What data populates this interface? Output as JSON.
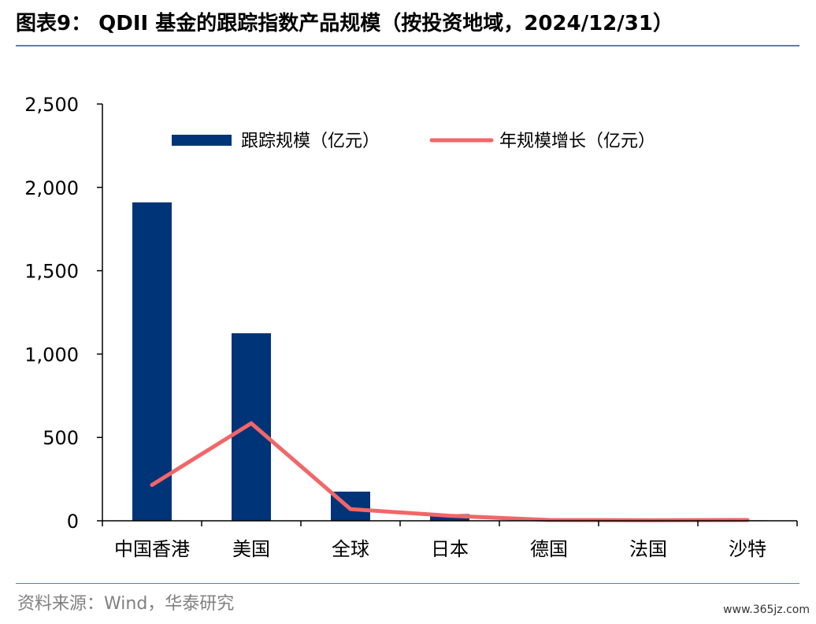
{
  "header": {
    "title": "图表9： QDII 基金的跟踪指数产品规模（按投资地域，2024/12/31）"
  },
  "footer": {
    "source": "资料来源：Wind，华泰研究",
    "watermark": "www.365jz.com"
  },
  "colors": {
    "bar": "#003478",
    "line": "#f26668",
    "axis": "#000000",
    "rule": "#4e83bd"
  },
  "chart_data": {
    "type": "bar",
    "categories": [
      "中国香港",
      "美国",
      "全球",
      "日本",
      "德国",
      "法国",
      "沙特"
    ],
    "series": [
      {
        "name": "跟踪规模（亿元）",
        "type": "bar",
        "values": [
          1910,
          1125,
          175,
          40,
          2,
          1,
          3
        ]
      },
      {
        "name": "年规模增长（亿元）",
        "type": "line",
        "values": [
          215,
          585,
          70,
          30,
          5,
          3,
          5
        ]
      }
    ],
    "yticks": [
      "0",
      "500",
      "1,000",
      "1,500",
      "2,000",
      "2,500"
    ],
    "ylim": [
      0,
      2500
    ],
    "grid": false,
    "legend_position": "top"
  }
}
